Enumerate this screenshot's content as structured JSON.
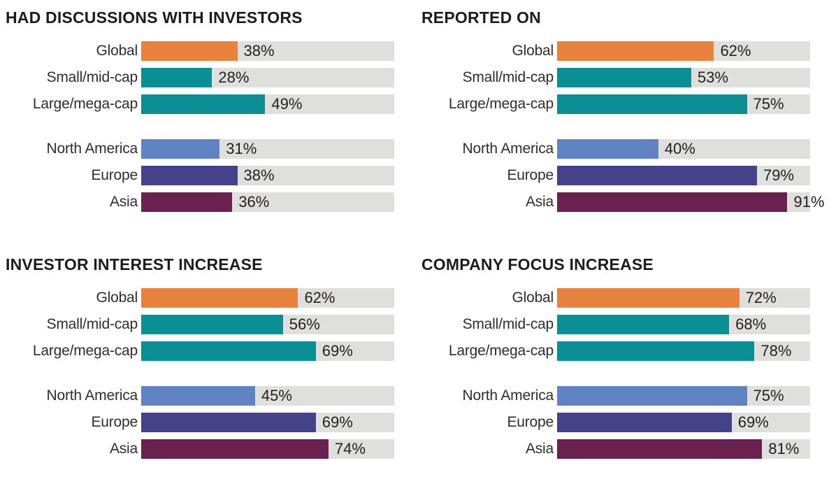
{
  "page": {
    "background": "#FFFFFF"
  },
  "colors": {
    "orange": "#E8823E",
    "teal": "#0B8E94",
    "light_blue": "#6083C4",
    "indigo": "#454289",
    "maroon": "#6B2150",
    "track_gray": "#DFDFDE",
    "title_text": "#1E1C1D",
    "label_text": "#2F2D2E",
    "value_text": "#231F20"
  },
  "category_colors": {
    "Global": "orange",
    "Small/mid-cap": "teal",
    "Large/mega-cap": "teal",
    "North America": "light_blue",
    "Europe": "indigo",
    "Asia": "maroon"
  },
  "chart_data": [
    {
      "type": "bar",
      "orientation": "horizontal",
      "title": "HAD DISCUSSIONS WITH INVESTORS",
      "unit": "%",
      "xlim": [
        0,
        100
      ],
      "value_labels": "inside-after-bar",
      "groups": [
        {
          "categories": [
            "Global",
            "Small/mid-cap",
            "Large/mega-cap"
          ],
          "values": [
            38,
            28,
            49
          ]
        },
        {
          "categories": [
            "North America",
            "Europe",
            "Asia"
          ],
          "values": [
            31,
            38,
            36
          ]
        }
      ]
    },
    {
      "type": "bar",
      "orientation": "horizontal",
      "title": "REPORTED ON",
      "unit": "%",
      "xlim": [
        0,
        100
      ],
      "value_labels": "inside-after-bar",
      "groups": [
        {
          "categories": [
            "Global",
            "Small/mid-cap",
            "Large/mega-cap"
          ],
          "values": [
            62,
            53,
            75
          ]
        },
        {
          "categories": [
            "North America",
            "Europe",
            "Asia"
          ],
          "values": [
            40,
            79,
            91
          ]
        }
      ]
    },
    {
      "type": "bar",
      "orientation": "horizontal",
      "title": "INVESTOR INTEREST INCREASE",
      "unit": "%",
      "xlim": [
        0,
        100
      ],
      "value_labels": "inside-after-bar",
      "groups": [
        {
          "categories": [
            "Global",
            "Small/mid-cap",
            "Large/mega-cap"
          ],
          "values": [
            62,
            56,
            69
          ]
        },
        {
          "categories": [
            "North America",
            "Europe",
            "Asia"
          ],
          "values": [
            45,
            69,
            74
          ]
        }
      ]
    },
    {
      "type": "bar",
      "orientation": "horizontal",
      "title": "COMPANY FOCUS INCREASE",
      "unit": "%",
      "xlim": [
        0,
        100
      ],
      "value_labels": "inside-after-bar",
      "groups": [
        {
          "categories": [
            "Global",
            "Small/mid-cap",
            "Large/mega-cap"
          ],
          "values": [
            72,
            68,
            78
          ]
        },
        {
          "categories": [
            "North America",
            "Europe",
            "Asia"
          ],
          "values": [
            75,
            69,
            81
          ]
        }
      ]
    }
  ]
}
